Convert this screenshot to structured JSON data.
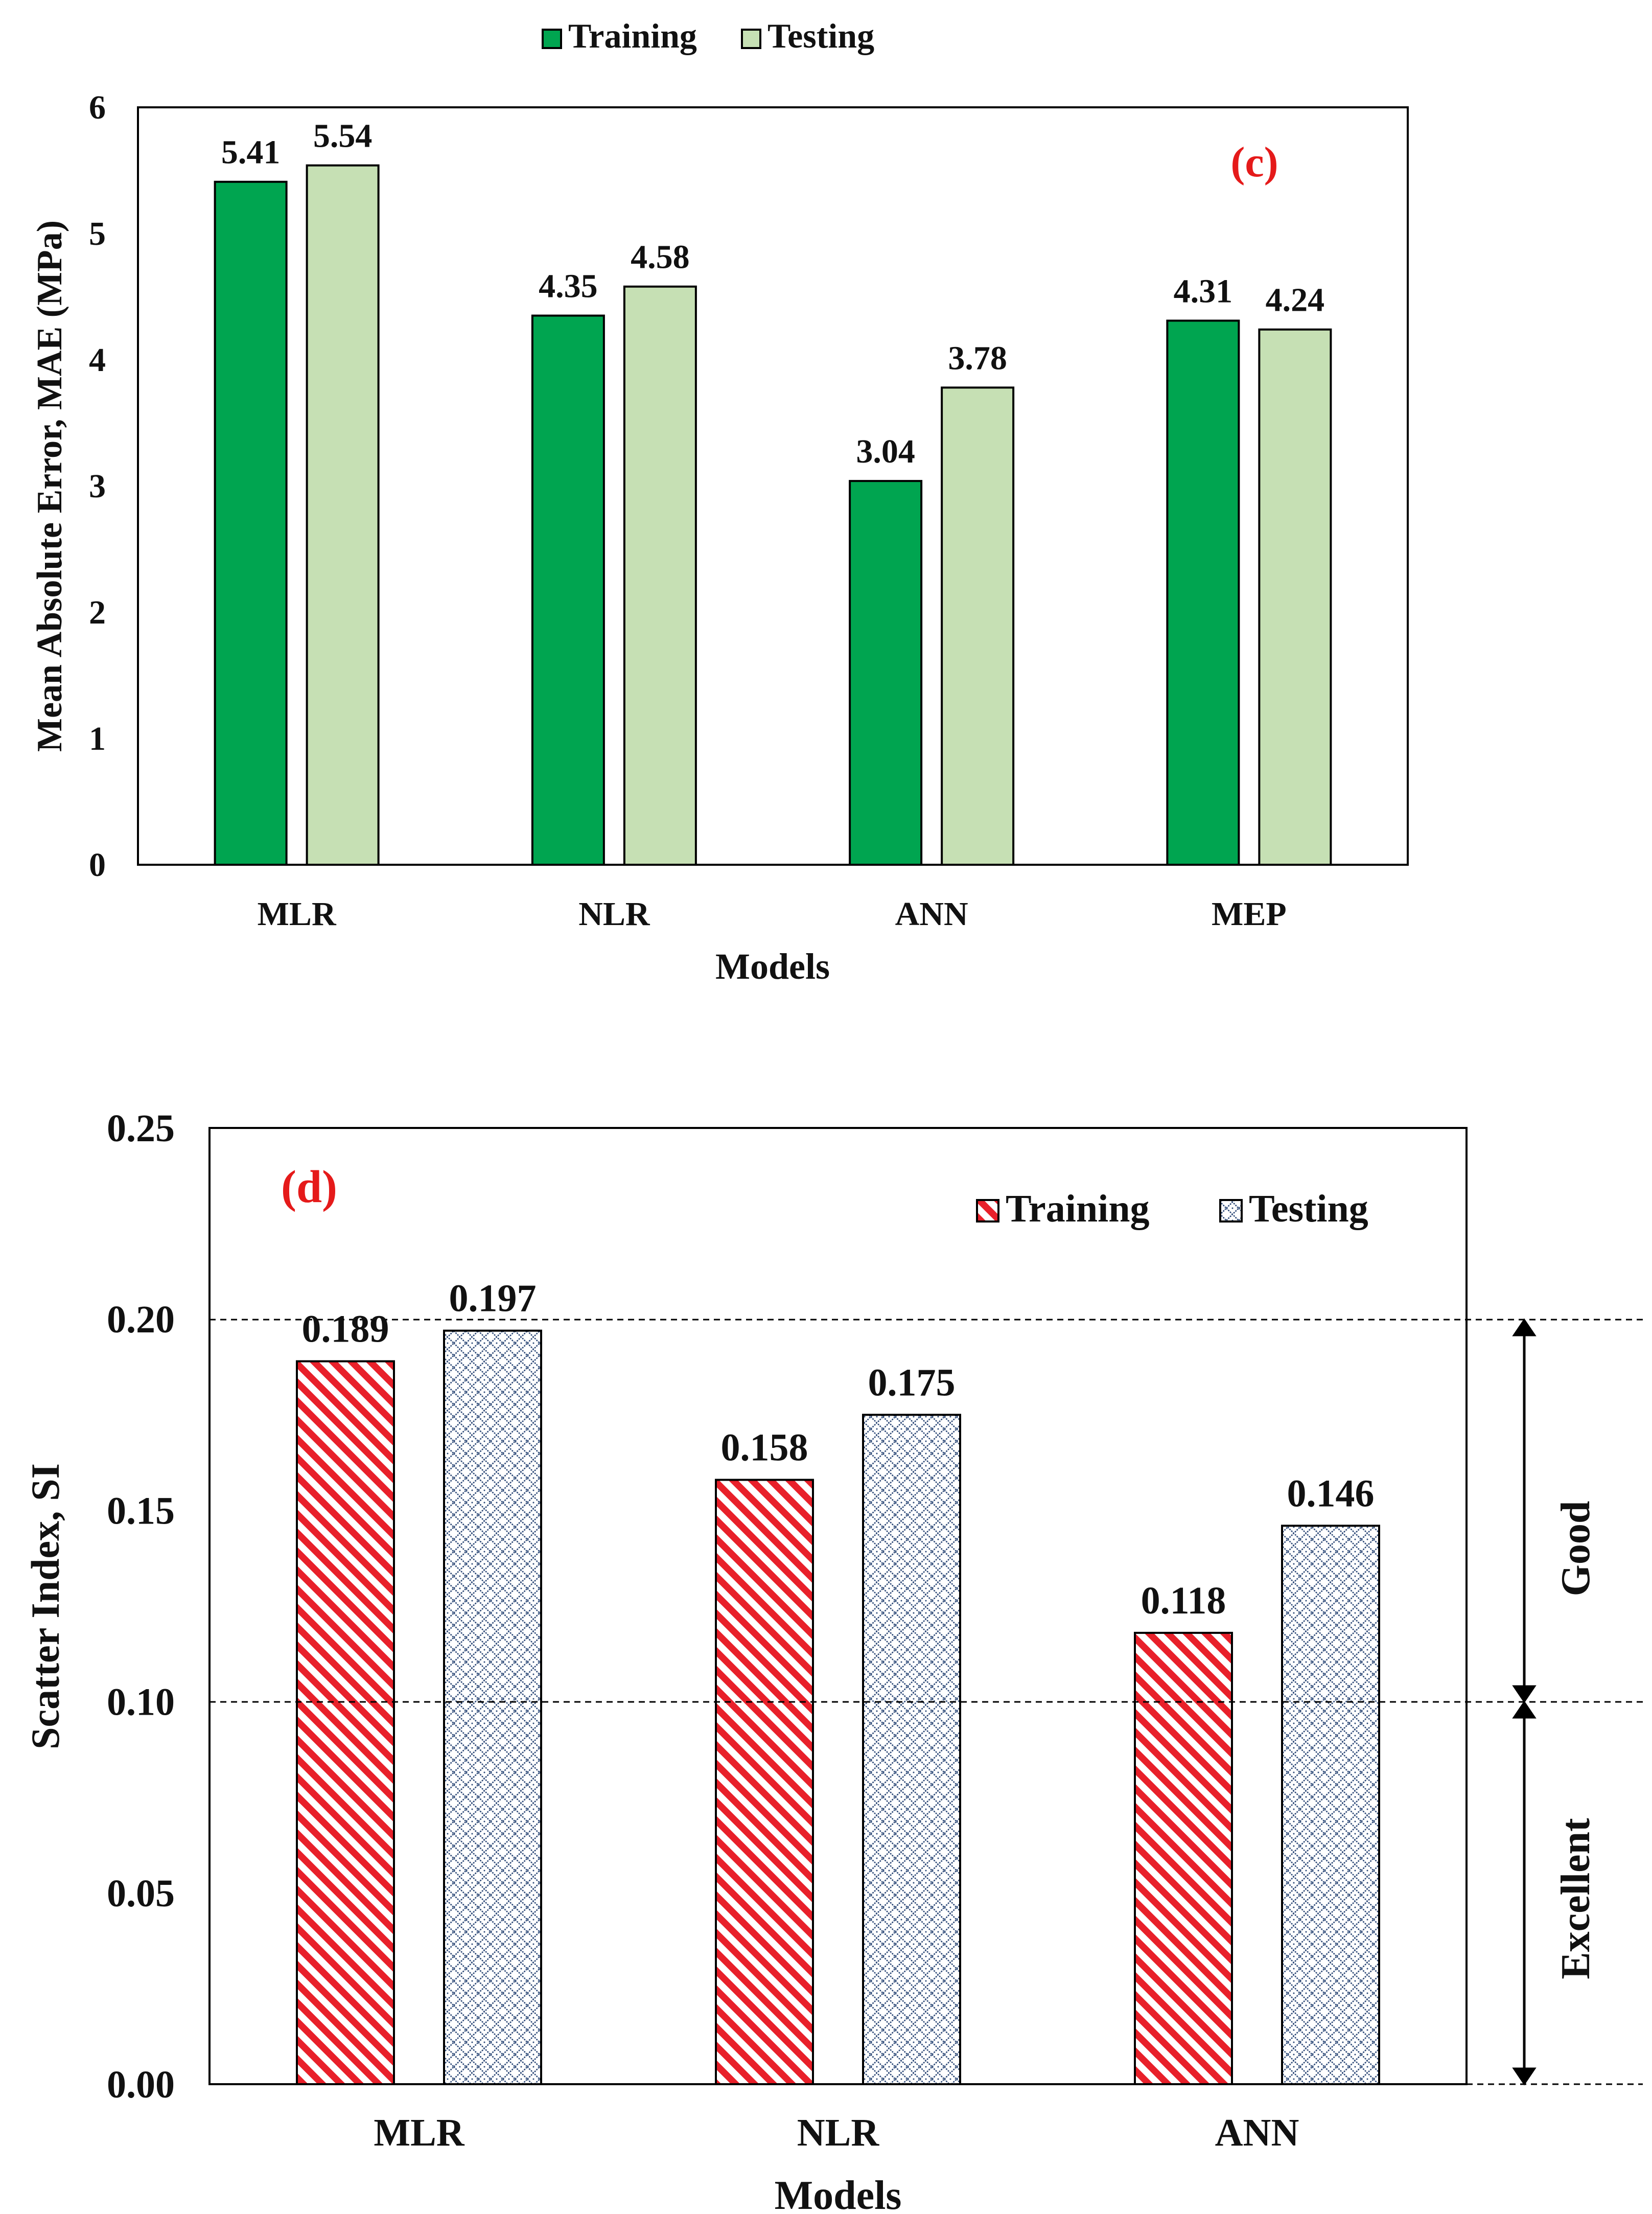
{
  "chart_data": [
    {
      "type": "bar",
      "panel_label": "(c)",
      "title": "",
      "xlabel": "Models",
      "ylabel": "Mean Absolute Error,  MAE (MPa)",
      "categories": [
        "MLR",
        "NLR",
        "ANN",
        "MEP"
      ],
      "series": [
        {
          "name": "Training",
          "values": [
            5.41,
            4.35,
            3.04,
            4.31
          ],
          "labels": [
            "5.41",
            "4.35",
            "3.04",
            "4.31"
          ]
        },
        {
          "name": "Testing",
          "values": [
            5.54,
            4.58,
            3.78,
            4.24
          ],
          "labels": [
            "5.54",
            "4.58",
            "3.78",
            "4.24"
          ]
        }
      ],
      "ylim": [
        0,
        6
      ],
      "yticks": [
        "0",
        "1",
        "2",
        "3",
        "4",
        "5",
        "6"
      ],
      "legend_position": "top-center",
      "grid": false
    },
    {
      "type": "bar",
      "panel_label": "(d)",
      "title": "",
      "xlabel": "Models",
      "ylabel": "Scatter Index, SI",
      "categories": [
        "MLR",
        "NLR",
        "ANN"
      ],
      "series": [
        {
          "name": "Training",
          "values": [
            0.189,
            0.158,
            0.118
          ],
          "labels": [
            "0.189",
            "0.158",
            "0.118"
          ]
        },
        {
          "name": "Testing",
          "values": [
            0.197,
            0.175,
            0.146
          ],
          "labels": [
            "0.197",
            "0.175",
            "0.146"
          ]
        }
      ],
      "ylim": [
        0,
        0.25
      ],
      "yticks": [
        "0.00",
        "0.05",
        "0.10",
        "0.15",
        "0.20",
        "0.25"
      ],
      "legend_position": "top-right",
      "grid": false,
      "reference_lines": [
        0.1,
        0.2
      ],
      "zones": [
        {
          "label": "Good",
          "from": 0.1,
          "to": 0.2
        },
        {
          "label": "Excellent",
          "from": 0.0,
          "to": 0.1
        }
      ]
    }
  ],
  "colors": {
    "c_training": "#00A550",
    "c_testing": "#C6E0B4",
    "d_training": "#E8202A",
    "d_testing": "#2E4A78",
    "panel_label": "#E51A1A",
    "axis": "#000000"
  }
}
